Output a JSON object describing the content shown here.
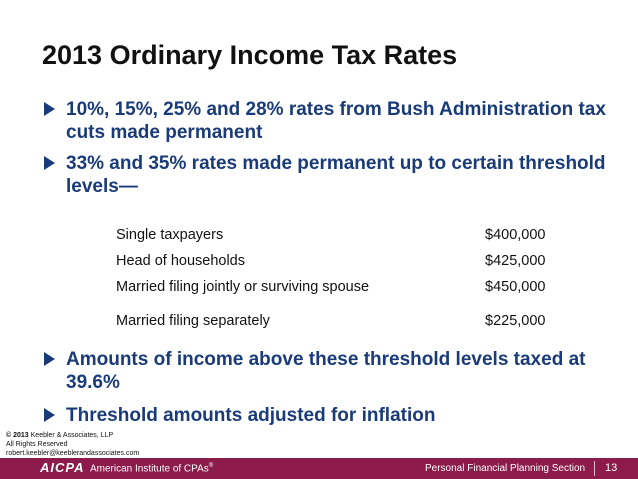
{
  "slide": {
    "title": "2013 Ordinary Income Tax Rates",
    "bullets_top": [
      "10%, 15%, 25% and 28% rates from Bush Administration tax cuts made permanent",
      "33% and 35% rates made permanent up to certain threshold levels—"
    ],
    "thresholds": [
      {
        "label": "Single taxpayers",
        "amount": "$400,000"
      },
      {
        "label": "Head of households",
        "amount": "$425,000"
      },
      {
        "label": "Married filing jointly or surviving spouse",
        "amount": "$450,000"
      },
      {
        "label": "Married filing separately",
        "amount": "$225,000"
      }
    ],
    "bullets_bottom": [
      "Amounts of income above these threshold levels taxed at 39.6%",
      "Threshold amounts adjusted for inflation"
    ]
  },
  "copyright": {
    "symbol_year": "© 2013",
    "holder": " Keebler & Associates, LLP",
    "rights": "All Rights Reserved",
    "email": "robert.keebler@keeblerandassociates.com"
  },
  "footer": {
    "logo": "AICPA",
    "org": "American Institute of CPAs",
    "org_mark": "®",
    "section": "Personal Financial Planning Section",
    "page_number": "13"
  },
  "colors": {
    "bullet_text": "#1a3b7a",
    "footer_bar": "#8c1a4a"
  }
}
